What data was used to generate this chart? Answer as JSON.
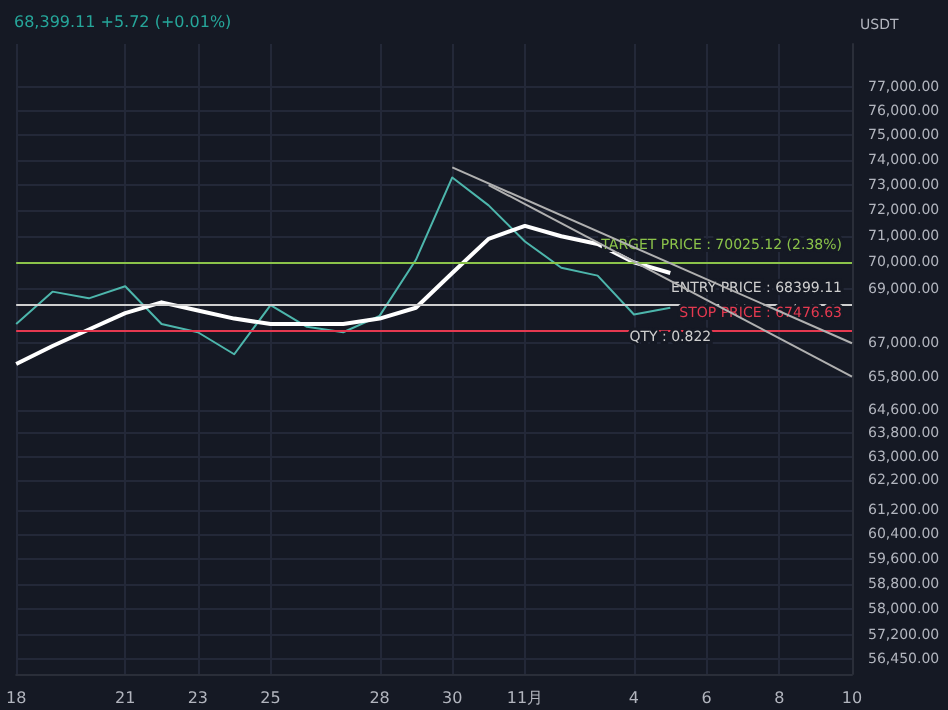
{
  "chart_data": {
    "type": "line",
    "title": "68,399.11 +5.72 (+0.01%)",
    "ylabel": "USDT",
    "log": "y",
    "grid": true,
    "marker": "none",
    "line_style": "solid",
    "x": [
      "--10-18",
      "--10-19",
      "--10-20",
      "--10-21",
      "--10-22",
      "--10-23",
      "--10-24",
      "--10-25",
      "--10-26",
      "--10-27",
      "--10-28",
      "--10-29",
      "--10-30",
      "--10-31",
      "--11-01",
      "--11-02",
      "--11-03",
      "--11-04",
      "--11-05"
    ],
    "series": [
      {
        "color": "#4db6ac",
        "values": [
          67700,
          68900,
          68650,
          69100,
          67700,
          67400,
          66600,
          68400,
          67600,
          67400,
          68000,
          70100,
          73300,
          72200,
          70800,
          69800,
          69500,
          68050,
          68300
        ]
      },
      {
        "color": "#ffffff",
        "values": [
          66250,
          66900,
          67500,
          68100,
          68500,
          68200,
          67900,
          67700,
          67700,
          67700,
          67900,
          68300,
          69600,
          70900,
          71400,
          71000,
          70700,
          70000,
          69600
        ]
      },
      {
        "color": "#b0b0b0",
        "x": [
          "--10-30",
          "--11-10"
        ],
        "values": [
          73700,
          67000
        ]
      },
      {
        "color": "#b0b0b0",
        "x": [
          "--10-31",
          "--11-10"
        ],
        "values": [
          73000,
          65800
        ]
      }
    ],
    "xlim": [
      "--10-18",
      "--11-10"
    ],
    "xticks": [
      {
        "value": "--10-18",
        "label": "18"
      },
      {
        "value": "--10-21",
        "label": "21"
      },
      {
        "value": "--10-23",
        "label": "23"
      },
      {
        "value": "--10-25",
        "label": "25"
      },
      {
        "value": "--10-28",
        "label": "28"
      },
      {
        "value": "--10-30",
        "label": "30"
      },
      {
        "value": "--11-01",
        "label": "11月"
      },
      {
        "value": "--11-04",
        "label": "4"
      },
      {
        "value": "--11-06",
        "label": "6"
      },
      {
        "value": "--11-08",
        "label": "8"
      },
      {
        "value": "--11-10",
        "label": "10"
      }
    ],
    "ylim": [
      56000,
      78800
    ],
    "yticks": [
      {
        "value": 77000,
        "label": "77,000.00"
      },
      {
        "value": 76000,
        "label": "76,000.00"
      },
      {
        "value": 75000,
        "label": "75,000.00"
      },
      {
        "value": 74000,
        "label": "74,000.00"
      },
      {
        "value": 73000,
        "label": "73,000.00"
      },
      {
        "value": 72000,
        "label": "72,000.00"
      },
      {
        "value": 71000,
        "label": "71,000.00"
      },
      {
        "value": 70000,
        "label": "70,000.00"
      },
      {
        "value": 69000,
        "label": "69,000.00"
      },
      {
        "value": 67000,
        "label": "67,000.00"
      },
      {
        "value": 65800,
        "label": "65,800.00"
      },
      {
        "value": 64600,
        "label": "64,600.00"
      },
      {
        "value": 63800,
        "label": "63,800.00"
      },
      {
        "value": 63000,
        "label": "63,000.00"
      },
      {
        "value": 62200,
        "label": "62,200.00"
      },
      {
        "value": 61200,
        "label": "61,200.00"
      },
      {
        "value": 60400,
        "label": "60,400.00"
      },
      {
        "value": 59600,
        "label": "59,600.00"
      },
      {
        "value": 58800,
        "label": "58,800.00"
      },
      {
        "value": 58000,
        "label": "58,000.00"
      },
      {
        "value": 57200,
        "label": "57,200.00"
      },
      {
        "value": 56450,
        "label": "56,450.00"
      }
    ],
    "ref_lines": [
      {
        "axis": "y",
        "value": 70025.12,
        "label": "TARGET PRICE : 70025.12 (2.38%)",
        "color": "#8bc34a"
      },
      {
        "axis": "y",
        "value": 68399.11,
        "label": "ENTRY PRICE : 68399.11",
        "color": "#cfcfcf"
      },
      {
        "axis": "y",
        "value": 67476.63,
        "label": "STOP PRICE : 67476.63",
        "color": "#e53950"
      }
    ],
    "annotations": [
      {
        "text": "QTY : 0.822",
        "x": "--11-05",
        "y": 68200
      }
    ]
  }
}
